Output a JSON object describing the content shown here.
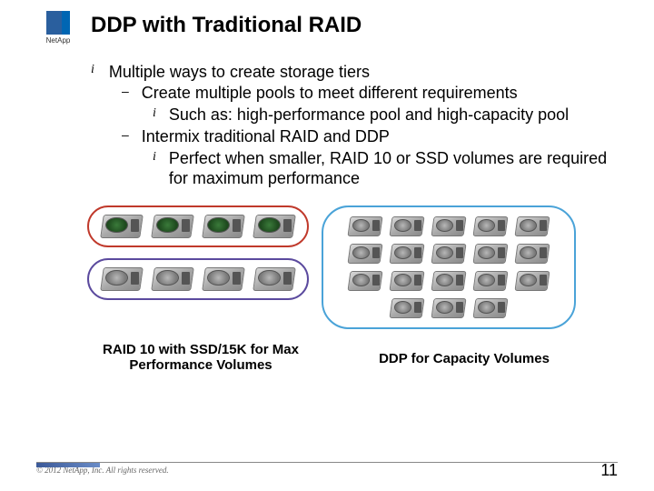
{
  "logo": {
    "brand": "NetApp"
  },
  "title": "DDP with Traditional RAID",
  "bullets": {
    "l1": "Multiple ways to create storage tiers",
    "l2a": "Create multiple pools to meet different requirements",
    "l3a": "Such as: high-performance pool and high-capacity pool",
    "l2b": "Intermix traditional RAID and DDP",
    "l3b": "Perfect when smaller, RAID 10 or SSD volumes are required for maximum performance"
  },
  "diagram": {
    "row1": {
      "border_color": "#c0392b",
      "drive_count": 4,
      "platter_color": "green"
    },
    "row2": {
      "border_color": "#5b4a9e",
      "drive_count": 4,
      "platter_color": "gray"
    },
    "big": {
      "border_color": "#4aa3d8",
      "drive_count": 18,
      "platter_color": "gray"
    }
  },
  "labels": {
    "left": "RAID 10 with SSD/15K for Max Performance Volumes",
    "right": "DDP for Capacity Volumes"
  },
  "footer": {
    "copyright": "© 2012 NetApp, Inc. All rights reserved.",
    "page": "11"
  },
  "style": {
    "title_fontsize": 24,
    "body_fontsize": 18,
    "label_fontsize": 15,
    "background_color": "#ffffff",
    "accent_bar_color": "#3b5998"
  }
}
